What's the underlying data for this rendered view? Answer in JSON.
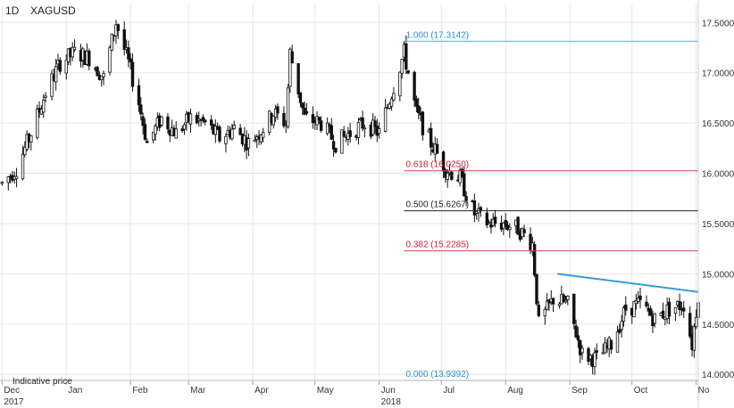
{
  "header": {
    "timeframe": "1D",
    "symbol": "XAGUSD"
  },
  "note": "Indicative price",
  "chart_data": {
    "type": "candlestick",
    "title": "",
    "xlabel": "",
    "ylabel": "",
    "ylim": [
      13.94,
      17.68
    ],
    "y_ticks": [
      "17.5000",
      "17.0000",
      "16.5000",
      "16.0000",
      "15.5000",
      "15.0000",
      "14.5000",
      "14.0000"
    ],
    "y_tick_values": [
      17.5,
      17.0,
      16.5,
      16.0,
      15.5,
      15.0,
      14.5,
      14.0
    ],
    "x_ticks": [
      "Dec",
      "Jan",
      "Feb",
      "Mar",
      "Apr",
      "May",
      "Jun",
      "Jul",
      "Aug",
      "Sep",
      "Oct",
      "No"
    ],
    "x_tick_dates": [
      "2017-12-01",
      "2018-01-01",
      "2018-02-01",
      "2018-03-01",
      "2018-04-01",
      "2018-05-01",
      "2018-06-01",
      "2018-07-01",
      "2018-08-01",
      "2018-09-01",
      "2018-10-01",
      "2018-11-01"
    ],
    "year_labels": [
      {
        "label": "2017",
        "date": "2017-12-01"
      },
      {
        "label": "2018",
        "date": "2018-06-01"
      }
    ],
    "x_range": [
      "2017-11-30",
      "2018-11-02"
    ],
    "grid": true,
    "fibonacci_levels": [
      {
        "label": "1.000 (17.3142)",
        "value": 17.3142,
        "color": "#5aaee0",
        "text_color": "#2f8fd0"
      },
      {
        "label": "0.618 (16.0250)",
        "value": 16.025,
        "color": "#e04050",
        "text_color": "#d02030"
      },
      {
        "label": "0.500 (15.6267)",
        "value": 15.6267,
        "color": "#222222",
        "text_color": "#222222"
      },
      {
        "label": "0.382 (15.2285)",
        "value": 15.2285,
        "color": "#e04050",
        "text_color": "#d02030"
      },
      {
        "label": "0.000 (13.9392)",
        "value": 13.9392,
        "color": "#5aaee0",
        "text_color": "#2f8fd0"
      }
    ],
    "fib_start_date": "2018-06-13",
    "trendline": {
      "color": "#3a9ad9",
      "points": [
        {
          "date": "2018-08-26",
          "value": 15.0
        },
        {
          "date": "2018-11-02",
          "value": 14.82
        }
      ]
    },
    "price_path": [
      [
        "2017-12-01",
        15.9
      ],
      [
        "2017-12-08",
        16.05
      ],
      [
        "2017-12-15",
        16.4
      ],
      [
        "2017-12-22",
        16.8
      ],
      [
        "2017-12-29",
        17.1
      ],
      [
        "2018-01-05",
        17.2
      ],
      [
        "2018-01-12",
        17.15
      ],
      [
        "2018-01-19",
        16.95
      ],
      [
        "2018-01-25",
        17.5
      ],
      [
        "2018-01-31",
        17.1
      ],
      [
        "2018-02-05",
        16.7
      ],
      [
        "2018-02-09",
        16.3
      ],
      [
        "2018-02-16",
        16.55
      ],
      [
        "2018-02-23",
        16.4
      ],
      [
        "2018-03-02",
        16.55
      ],
      [
        "2018-03-09",
        16.5
      ],
      [
        "2018-03-16",
        16.35
      ],
      [
        "2018-03-23",
        16.45
      ],
      [
        "2018-03-30",
        16.3
      ],
      [
        "2018-04-06",
        16.45
      ],
      [
        "2018-04-11",
        16.6
      ],
      [
        "2018-04-17",
        16.5
      ],
      [
        "2018-04-19",
        17.2
      ],
      [
        "2018-04-26",
        16.55
      ],
      [
        "2018-05-04",
        16.5
      ],
      [
        "2018-05-11",
        16.3
      ],
      [
        "2018-05-18",
        16.4
      ],
      [
        "2018-05-25",
        16.5
      ],
      [
        "2018-06-01",
        16.4
      ],
      [
        "2018-06-07",
        16.8
      ],
      [
        "2018-06-13",
        17.2
      ],
      [
        "2018-06-19",
        16.6
      ],
      [
        "2018-06-26",
        16.3
      ],
      [
        "2018-07-03",
        16.05
      ],
      [
        "2018-07-10",
        15.95
      ],
      [
        "2018-07-17",
        15.6
      ],
      [
        "2018-07-24",
        15.5
      ],
      [
        "2018-07-31",
        15.5
      ],
      [
        "2018-08-07",
        15.45
      ],
      [
        "2018-08-14",
        15.3
      ],
      [
        "2018-08-17",
        14.5
      ],
      [
        "2018-08-24",
        14.75
      ],
      [
        "2018-08-31",
        14.7
      ],
      [
        "2018-09-07",
        14.2
      ],
      [
        "2018-09-14",
        14.15
      ],
      [
        "2018-09-21",
        14.3
      ],
      [
        "2018-09-28",
        14.65
      ],
      [
        "2018-10-05",
        14.7
      ],
      [
        "2018-10-12",
        14.55
      ],
      [
        "2018-10-19",
        14.65
      ],
      [
        "2018-10-26",
        14.7
      ],
      [
        "2018-10-30",
        14.3
      ],
      [
        "2018-11-02",
        14.8
      ]
    ]
  }
}
